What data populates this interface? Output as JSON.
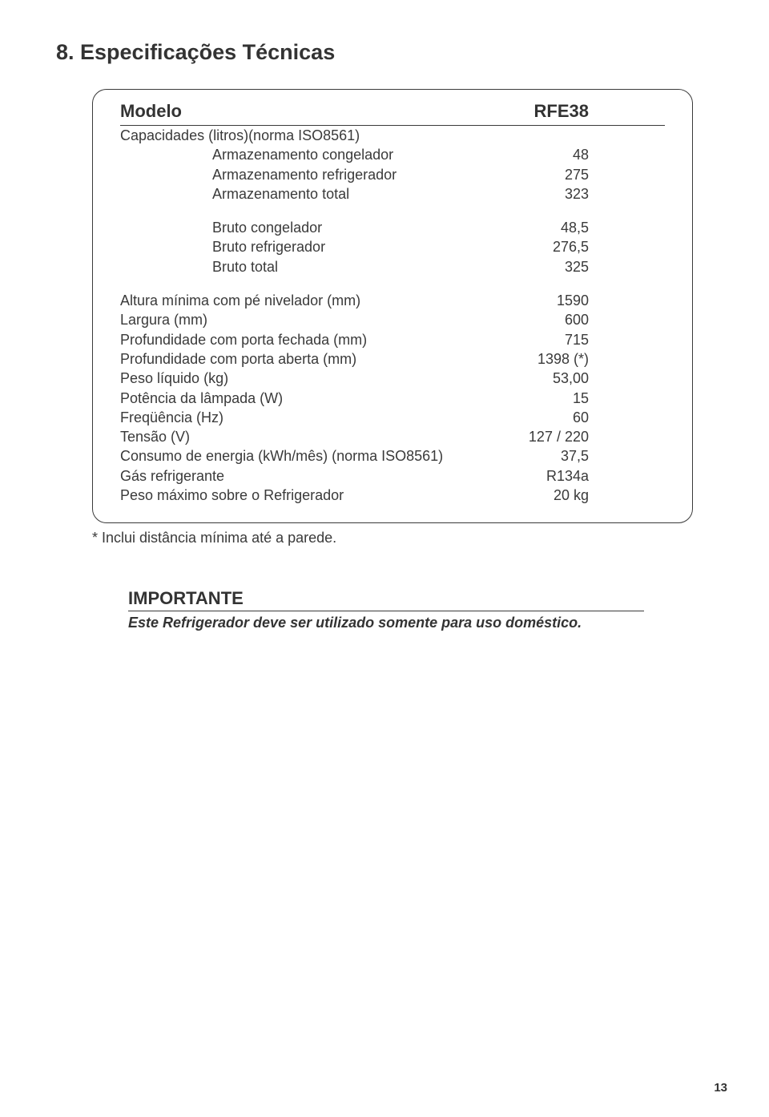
{
  "title": "8. Especificações Técnicas",
  "header": {
    "label": "Modelo",
    "value": "RFE38"
  },
  "groups": [
    {
      "heading": {
        "label": "Capacidades (litros)(norma ISO8561)",
        "value": ""
      },
      "rows": [
        {
          "label": "Armazenamento congelador",
          "value": "48",
          "indent": true
        },
        {
          "label": "Armazenamento refrigerador",
          "value": "275",
          "indent": true
        },
        {
          "label": "Armazenamento total",
          "value": "323",
          "indent": true
        }
      ]
    },
    {
      "rows": [
        {
          "label": "Bruto congelador",
          "value": "48,5",
          "indent": true
        },
        {
          "label": "Bruto refrigerador",
          "value": "276,5",
          "indent": true
        },
        {
          "label": "Bruto total",
          "value": "325",
          "indent": true
        }
      ]
    },
    {
      "rows": [
        {
          "label": "Altura mínima com pé nivelador (mm)",
          "value": "1590"
        },
        {
          "label": "Largura (mm)",
          "value": "600"
        },
        {
          "label": "Profundidade com porta fechada (mm)",
          "value": "715"
        },
        {
          "label": "Profundidade com porta aberta (mm)",
          "value": "1398 (*)"
        },
        {
          "label": "Peso líquido (kg)",
          "value": "53,00"
        },
        {
          "label": "Potência da lâmpada (W)",
          "value": "15"
        },
        {
          "label": "Freqüência (Hz)",
          "value": "60"
        },
        {
          "label": "Tensão (V)",
          "value": "127 / 220"
        },
        {
          "label": "Consumo de energia (kWh/mês) (norma ISO8561)",
          "value": "37,5"
        },
        {
          "label": "Gás refrigerante",
          "value": "R134a"
        },
        {
          "label": "Peso máximo sobre o Refrigerador",
          "value": "20 kg"
        }
      ]
    }
  ],
  "footnote": "* Inclui distância mínima até a parede.",
  "important": {
    "title": "IMPORTANTE",
    "text": "Este Refrigerador deve ser utilizado somente para uso doméstico."
  },
  "page_number": "13"
}
